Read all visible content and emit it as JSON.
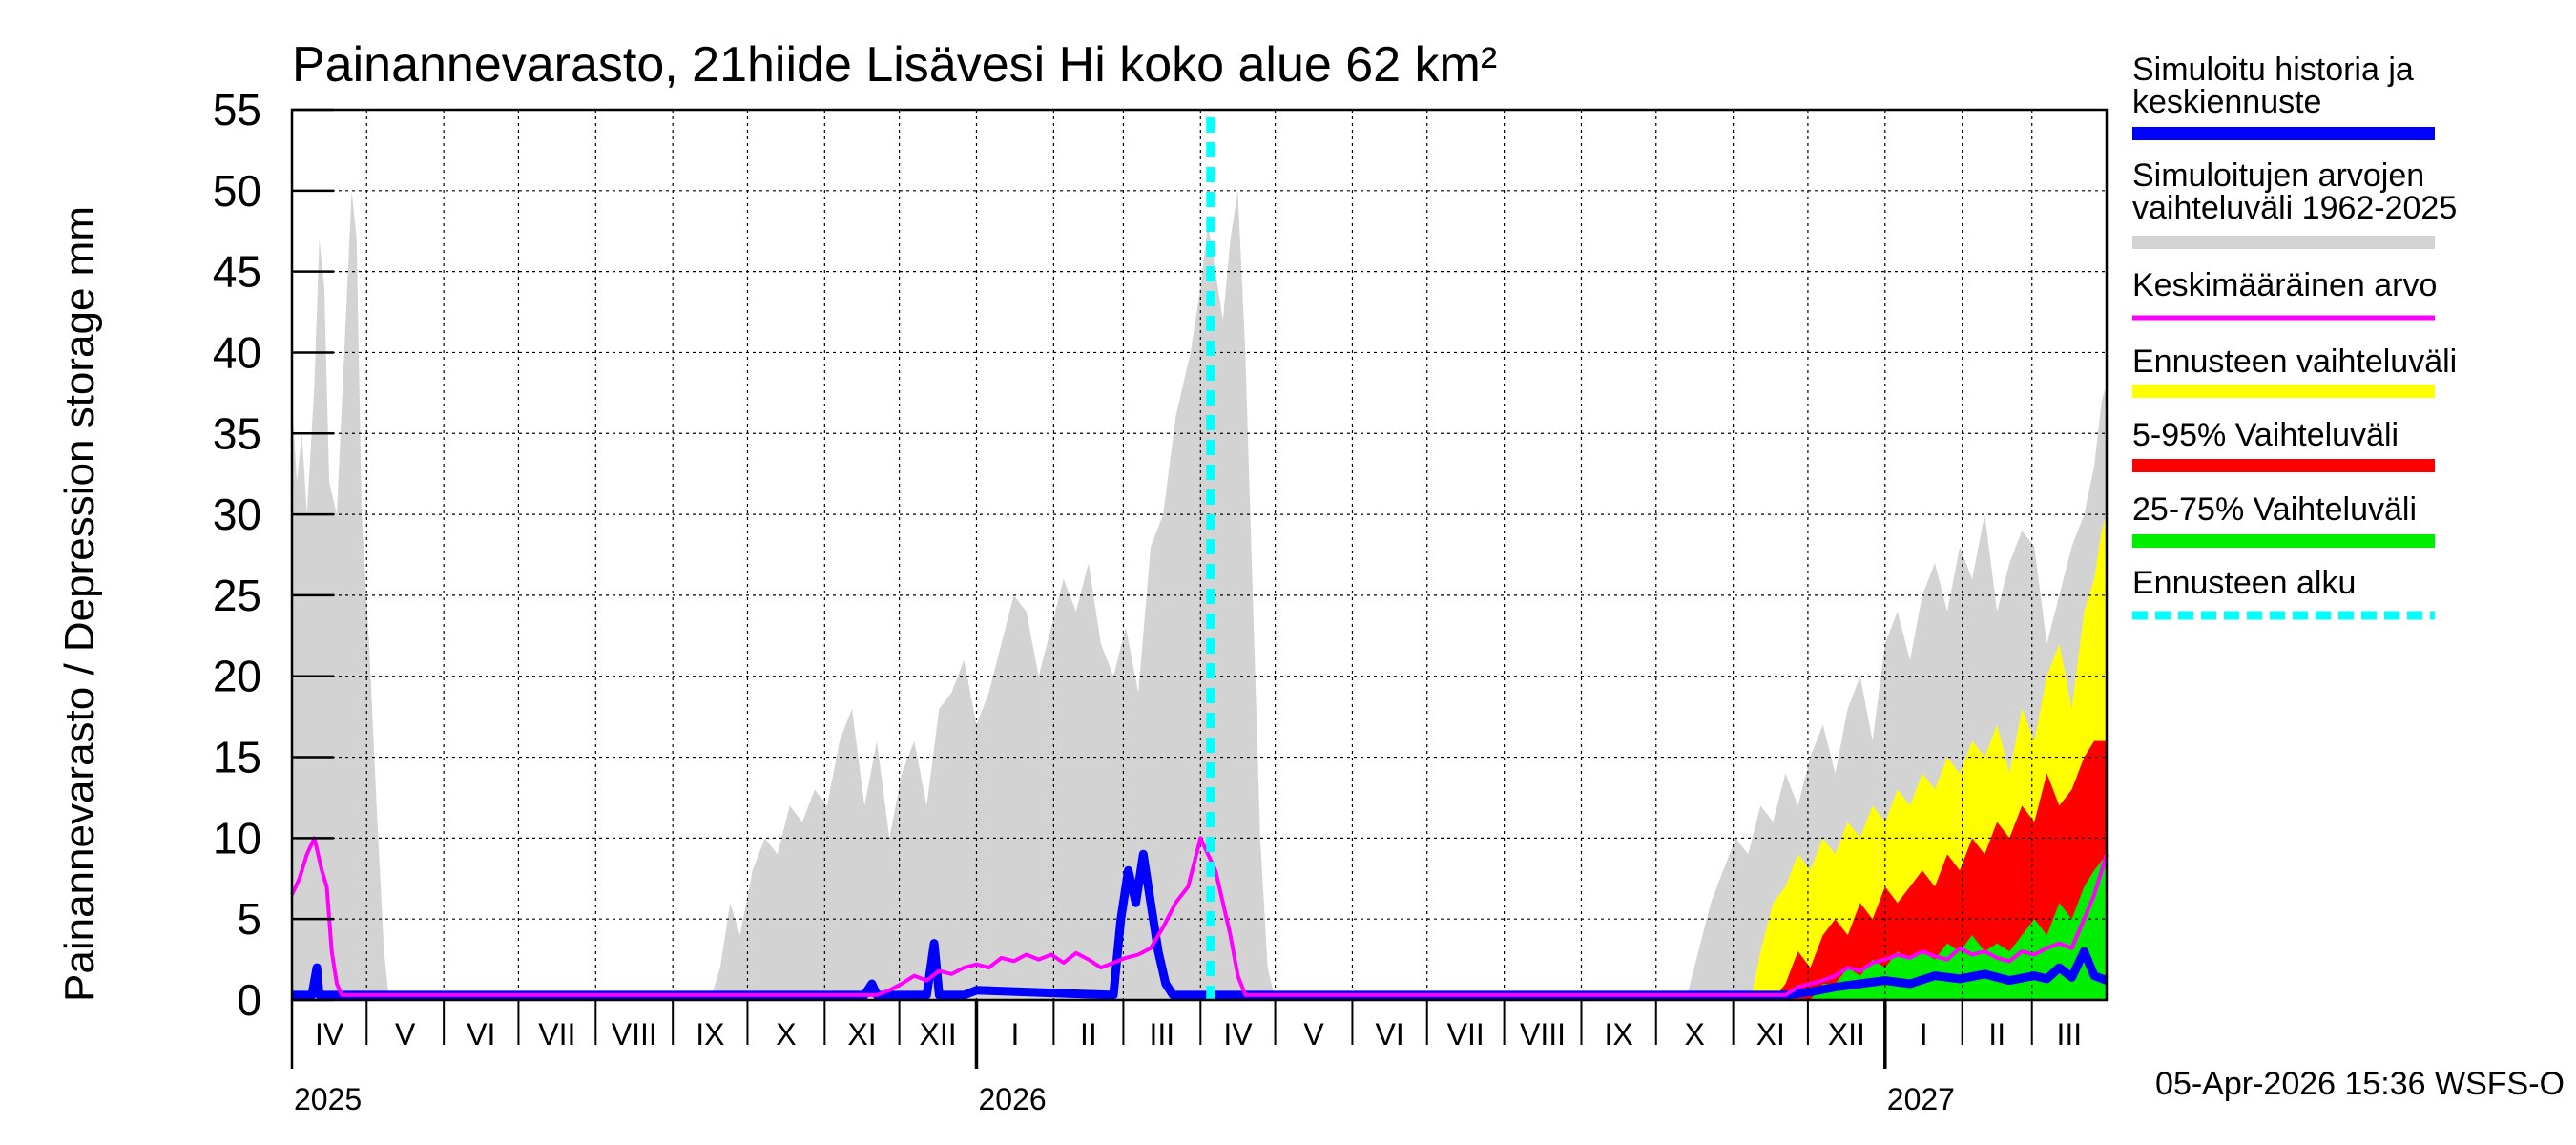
{
  "chart_data": {
    "type": "area",
    "title": "Painannevarasto, 21hiide Lisävesi Hi koko alue 62 km²",
    "ylabel": "Painannevarasto / Depression storage    mm",
    "ylim": [
      0,
      55
    ],
    "yticks": [
      "0",
      "5",
      "10",
      "15",
      "20",
      "25",
      "30",
      "35",
      "40",
      "45",
      "50",
      "55"
    ],
    "grid": true,
    "x_start": "2025-04-01",
    "x_end": "2027-03-31",
    "forecast_start": "2026-04-05",
    "months": [
      "IV",
      "V",
      "VI",
      "VII",
      "VIII",
      "IX",
      "X",
      "XI",
      "XII",
      "I",
      "II",
      "III",
      "IV",
      "V",
      "VI",
      "VII",
      "VIII",
      "IX",
      "X",
      "XI",
      "XII",
      "I",
      "II",
      "III"
    ],
    "years": [
      "2025",
      "2026",
      "2027"
    ],
    "timestamp": "05-Apr-2026 15:36 WSFS-O",
    "legend": [
      {
        "label": "Simuloitu historia ja keskiennuste",
        "color": "#0000ff",
        "style": "solid"
      },
      {
        "label": "Simuloitujen arvojen vaihteluväli 1962-2025",
        "color": "#d3d3d3",
        "style": "solid"
      },
      {
        "label": "Keskimääräinen arvo",
        "color": "#ff00ff",
        "style": "thin"
      },
      {
        "label": "Ennusteen vaihteluväli",
        "color": "#ffff00",
        "style": "solid"
      },
      {
        "label": "5-95% Vaihteluväli",
        "color": "#ff0000",
        "style": "solid"
      },
      {
        "label": "25-75% Vaihteluväli",
        "color": "#00ee00",
        "style": "solid"
      },
      {
        "label": "Ennusteen alku",
        "color": "#00ffff",
        "style": "dashed"
      }
    ],
    "series": [
      {
        "name": "Simuloitujen arvojen vaihteluväli 1962-2025",
        "color": "#d3d3d3",
        "kind": "band",
        "points": [
          [
            0,
            37
          ],
          [
            2,
            32
          ],
          [
            4,
            35
          ],
          [
            6,
            30
          ],
          [
            9,
            38
          ],
          [
            11,
            47
          ],
          [
            13,
            44
          ],
          [
            15,
            32
          ],
          [
            18,
            30
          ],
          [
            21,
            40
          ],
          [
            24,
            50
          ],
          [
            26,
            47
          ],
          [
            28,
            30
          ],
          [
            31,
            22
          ],
          [
            34,
            12
          ],
          [
            37,
            3
          ],
          [
            39,
            0
          ],
          [
            168,
            0
          ],
          [
            172,
            2
          ],
          [
            176,
            6
          ],
          [
            180,
            4
          ],
          [
            185,
            8
          ],
          [
            190,
            10
          ],
          [
            195,
            9
          ],
          [
            200,
            12
          ],
          [
            205,
            11
          ],
          [
            210,
            13
          ],
          [
            215,
            12
          ],
          [
            220,
            16
          ],
          [
            225,
            18
          ],
          [
            230,
            12
          ],
          [
            235,
            16
          ],
          [
            240,
            10
          ],
          [
            245,
            14
          ],
          [
            250,
            16
          ],
          [
            255,
            12
          ],
          [
            260,
            18
          ],
          [
            265,
            19
          ],
          [
            270,
            21
          ],
          [
            275,
            17
          ],
          [
            280,
            19
          ],
          [
            285,
            22
          ],
          [
            290,
            25
          ],
          [
            295,
            24
          ],
          [
            300,
            20
          ],
          [
            305,
            23
          ],
          [
            310,
            26
          ],
          [
            315,
            24
          ],
          [
            320,
            27
          ],
          [
            325,
            22
          ],
          [
            330,
            20
          ],
          [
            335,
            23
          ],
          [
            340,
            19
          ],
          [
            345,
            28
          ],
          [
            350,
            30
          ],
          [
            355,
            36
          ],
          [
            358,
            38
          ],
          [
            361,
            40
          ],
          [
            365,
            44
          ],
          [
            368,
            48
          ],
          [
            371,
            45
          ],
          [
            374,
            42
          ],
          [
            377,
            47
          ],
          [
            380,
            50
          ],
          [
            383,
            40
          ],
          [
            386,
            25
          ],
          [
            389,
            10
          ],
          [
            392,
            2
          ],
          [
            395,
            0
          ],
          [
            560,
            0
          ],
          [
            565,
            3
          ],
          [
            570,
            6
          ],
          [
            575,
            8
          ],
          [
            580,
            10
          ],
          [
            585,
            9
          ],
          [
            590,
            12
          ],
          [
            595,
            11
          ],
          [
            600,
            14
          ],
          [
            605,
            12
          ],
          [
            610,
            15
          ],
          [
            615,
            17
          ],
          [
            620,
            14
          ],
          [
            625,
            18
          ],
          [
            630,
            20
          ],
          [
            635,
            16
          ],
          [
            640,
            22
          ],
          [
            645,
            24
          ],
          [
            650,
            21
          ],
          [
            655,
            25
          ],
          [
            660,
            27
          ],
          [
            665,
            24
          ],
          [
            670,
            28
          ],
          [
            675,
            26
          ],
          [
            680,
            30
          ],
          [
            685,
            24
          ],
          [
            690,
            27
          ],
          [
            695,
            29
          ],
          [
            700,
            28
          ],
          [
            705,
            22
          ],
          [
            710,
            25
          ],
          [
            715,
            28
          ],
          [
            720,
            30
          ],
          [
            724,
            33
          ],
          [
            727,
            37
          ],
          [
            729,
            38
          ],
          [
            729,
            0
          ]
        ]
      },
      {
        "name": "Ennusteen vaihteluväli",
        "color": "#ffff00",
        "kind": "band",
        "points": [
          [
            586,
            0
          ],
          [
            590,
            3
          ],
          [
            595,
            6
          ],
          [
            600,
            7
          ],
          [
            605,
            9
          ],
          [
            610,
            8
          ],
          [
            615,
            10
          ],
          [
            620,
            9
          ],
          [
            625,
            11
          ],
          [
            630,
            10
          ],
          [
            635,
            12
          ],
          [
            640,
            11
          ],
          [
            645,
            13
          ],
          [
            650,
            12
          ],
          [
            655,
            14
          ],
          [
            660,
            13
          ],
          [
            665,
            15
          ],
          [
            670,
            14
          ],
          [
            675,
            16
          ],
          [
            680,
            15
          ],
          [
            685,
            17
          ],
          [
            690,
            14
          ],
          [
            695,
            18
          ],
          [
            700,
            16
          ],
          [
            705,
            20
          ],
          [
            710,
            22
          ],
          [
            715,
            18
          ],
          [
            720,
            24
          ],
          [
            724,
            26
          ],
          [
            727,
            29
          ],
          [
            729,
            30
          ],
          [
            729,
            0
          ]
        ]
      },
      {
        "name": "5-95% Vaihteluväli",
        "color": "#ff0000",
        "kind": "band",
        "points": [
          [
            595,
            0
          ],
          [
            600,
            1
          ],
          [
            605,
            3
          ],
          [
            610,
            2
          ],
          [
            615,
            4
          ],
          [
            620,
            5
          ],
          [
            625,
            4
          ],
          [
            630,
            6
          ],
          [
            635,
            5
          ],
          [
            640,
            7
          ],
          [
            645,
            6
          ],
          [
            650,
            7
          ],
          [
            655,
            8
          ],
          [
            660,
            7
          ],
          [
            665,
            9
          ],
          [
            670,
            8
          ],
          [
            675,
            10
          ],
          [
            680,
            9
          ],
          [
            685,
            11
          ],
          [
            690,
            10
          ],
          [
            695,
            12
          ],
          [
            700,
            11
          ],
          [
            705,
            14
          ],
          [
            710,
            12
          ],
          [
            715,
            13
          ],
          [
            720,
            15
          ],
          [
            724,
            16
          ],
          [
            729,
            16
          ],
          [
            729,
            0
          ]
        ]
      },
      {
        "name": "25-75% Vaihteluväli",
        "color": "#00ee00",
        "kind": "band",
        "points": [
          [
            610,
            0
          ],
          [
            615,
            1
          ],
          [
            620,
            1
          ],
          [
            625,
            2
          ],
          [
            630,
            1.5
          ],
          [
            635,
            2.5
          ],
          [
            640,
            2
          ],
          [
            645,
            3
          ],
          [
            650,
            2.5
          ],
          [
            655,
            3
          ],
          [
            660,
            2.5
          ],
          [
            665,
            3.5
          ],
          [
            670,
            3
          ],
          [
            675,
            4
          ],
          [
            680,
            3
          ],
          [
            685,
            3.5
          ],
          [
            690,
            3
          ],
          [
            695,
            4
          ],
          [
            700,
            5
          ],
          [
            705,
            4
          ],
          [
            710,
            6
          ],
          [
            715,
            5
          ],
          [
            720,
            7
          ],
          [
            724,
            8
          ],
          [
            729,
            9
          ],
          [
            729,
            0
          ]
        ]
      },
      {
        "name": "Simuloitu historia ja keskiennuste",
        "color": "#0000ff",
        "kind": "line",
        "points": [
          [
            0,
            0.3
          ],
          [
            8,
            0.3
          ],
          [
            10,
            2
          ],
          [
            11,
            0.3
          ],
          [
            230,
            0.3
          ],
          [
            233,
            1
          ],
          [
            235,
            0.3
          ],
          [
            255,
            0.3
          ],
          [
            258,
            3.5
          ],
          [
            260,
            0.3
          ],
          [
            270,
            0.3
          ],
          [
            275,
            0.6
          ],
          [
            330,
            0.3
          ],
          [
            333,
            5
          ],
          [
            336,
            8
          ],
          [
            339,
            6
          ],
          [
            342,
            9
          ],
          [
            345,
            6
          ],
          [
            348,
            3
          ],
          [
            351,
            1
          ],
          [
            354,
            0.3
          ],
          [
            600,
            0.3
          ],
          [
            610,
            0.5
          ],
          [
            620,
            0.8
          ],
          [
            630,
            1
          ],
          [
            640,
            1.2
          ],
          [
            650,
            1
          ],
          [
            660,
            1.5
          ],
          [
            670,
            1.3
          ],
          [
            680,
            1.6
          ],
          [
            690,
            1.2
          ],
          [
            700,
            1.5
          ],
          [
            705,
            1.3
          ],
          [
            710,
            2
          ],
          [
            715,
            1.4
          ],
          [
            720,
            3
          ],
          [
            724,
            1.5
          ],
          [
            729,
            1.2
          ]
        ]
      },
      {
        "name": "Keskimääräinen arvo",
        "color": "#ff00ff",
        "kind": "line",
        "points": [
          [
            0,
            6.5
          ],
          [
            3,
            7.5
          ],
          [
            6,
            9
          ],
          [
            9,
            10
          ],
          [
            12,
            8
          ],
          [
            14,
            7
          ],
          [
            16,
            3
          ],
          [
            18,
            1
          ],
          [
            20,
            0.3
          ],
          [
            235,
            0.3
          ],
          [
            240,
            0.6
          ],
          [
            245,
            1
          ],
          [
            250,
            1.5
          ],
          [
            255,
            1.2
          ],
          [
            260,
            1.8
          ],
          [
            265,
            1.6
          ],
          [
            270,
            2
          ],
          [
            275,
            2.2
          ],
          [
            280,
            2
          ],
          [
            285,
            2.6
          ],
          [
            290,
            2.4
          ],
          [
            295,
            2.8
          ],
          [
            300,
            2.5
          ],
          [
            305,
            2.8
          ],
          [
            310,
            2.3
          ],
          [
            315,
            2.9
          ],
          [
            320,
            2.5
          ],
          [
            325,
            2
          ],
          [
            330,
            2.3
          ],
          [
            335,
            2.6
          ],
          [
            340,
            2.8
          ],
          [
            345,
            3.2
          ],
          [
            350,
            4.5
          ],
          [
            355,
            6
          ],
          [
            360,
            7
          ],
          [
            365,
            10
          ],
          [
            368,
            9
          ],
          [
            371,
            8
          ],
          [
            374,
            6
          ],
          [
            377,
            4
          ],
          [
            380,
            1.5
          ],
          [
            383,
            0.3
          ],
          [
            600,
            0.3
          ],
          [
            605,
            0.8
          ],
          [
            610,
            1
          ],
          [
            615,
            1.2
          ],
          [
            620,
            1.5
          ],
          [
            625,
            2
          ],
          [
            630,
            1.8
          ],
          [
            635,
            2.3
          ],
          [
            640,
            2.5
          ],
          [
            645,
            2.8
          ],
          [
            650,
            2.6
          ],
          [
            655,
            3
          ],
          [
            660,
            2.7
          ],
          [
            665,
            2.5
          ],
          [
            670,
            3.2
          ],
          [
            675,
            2.8
          ],
          [
            680,
            3
          ],
          [
            685,
            2.6
          ],
          [
            690,
            2.4
          ],
          [
            695,
            3
          ],
          [
            700,
            2.8
          ],
          [
            705,
            3.2
          ],
          [
            710,
            3.5
          ],
          [
            715,
            3.2
          ],
          [
            720,
            5
          ],
          [
            724,
            6.5
          ],
          [
            729,
            9
          ]
        ]
      }
    ]
  }
}
